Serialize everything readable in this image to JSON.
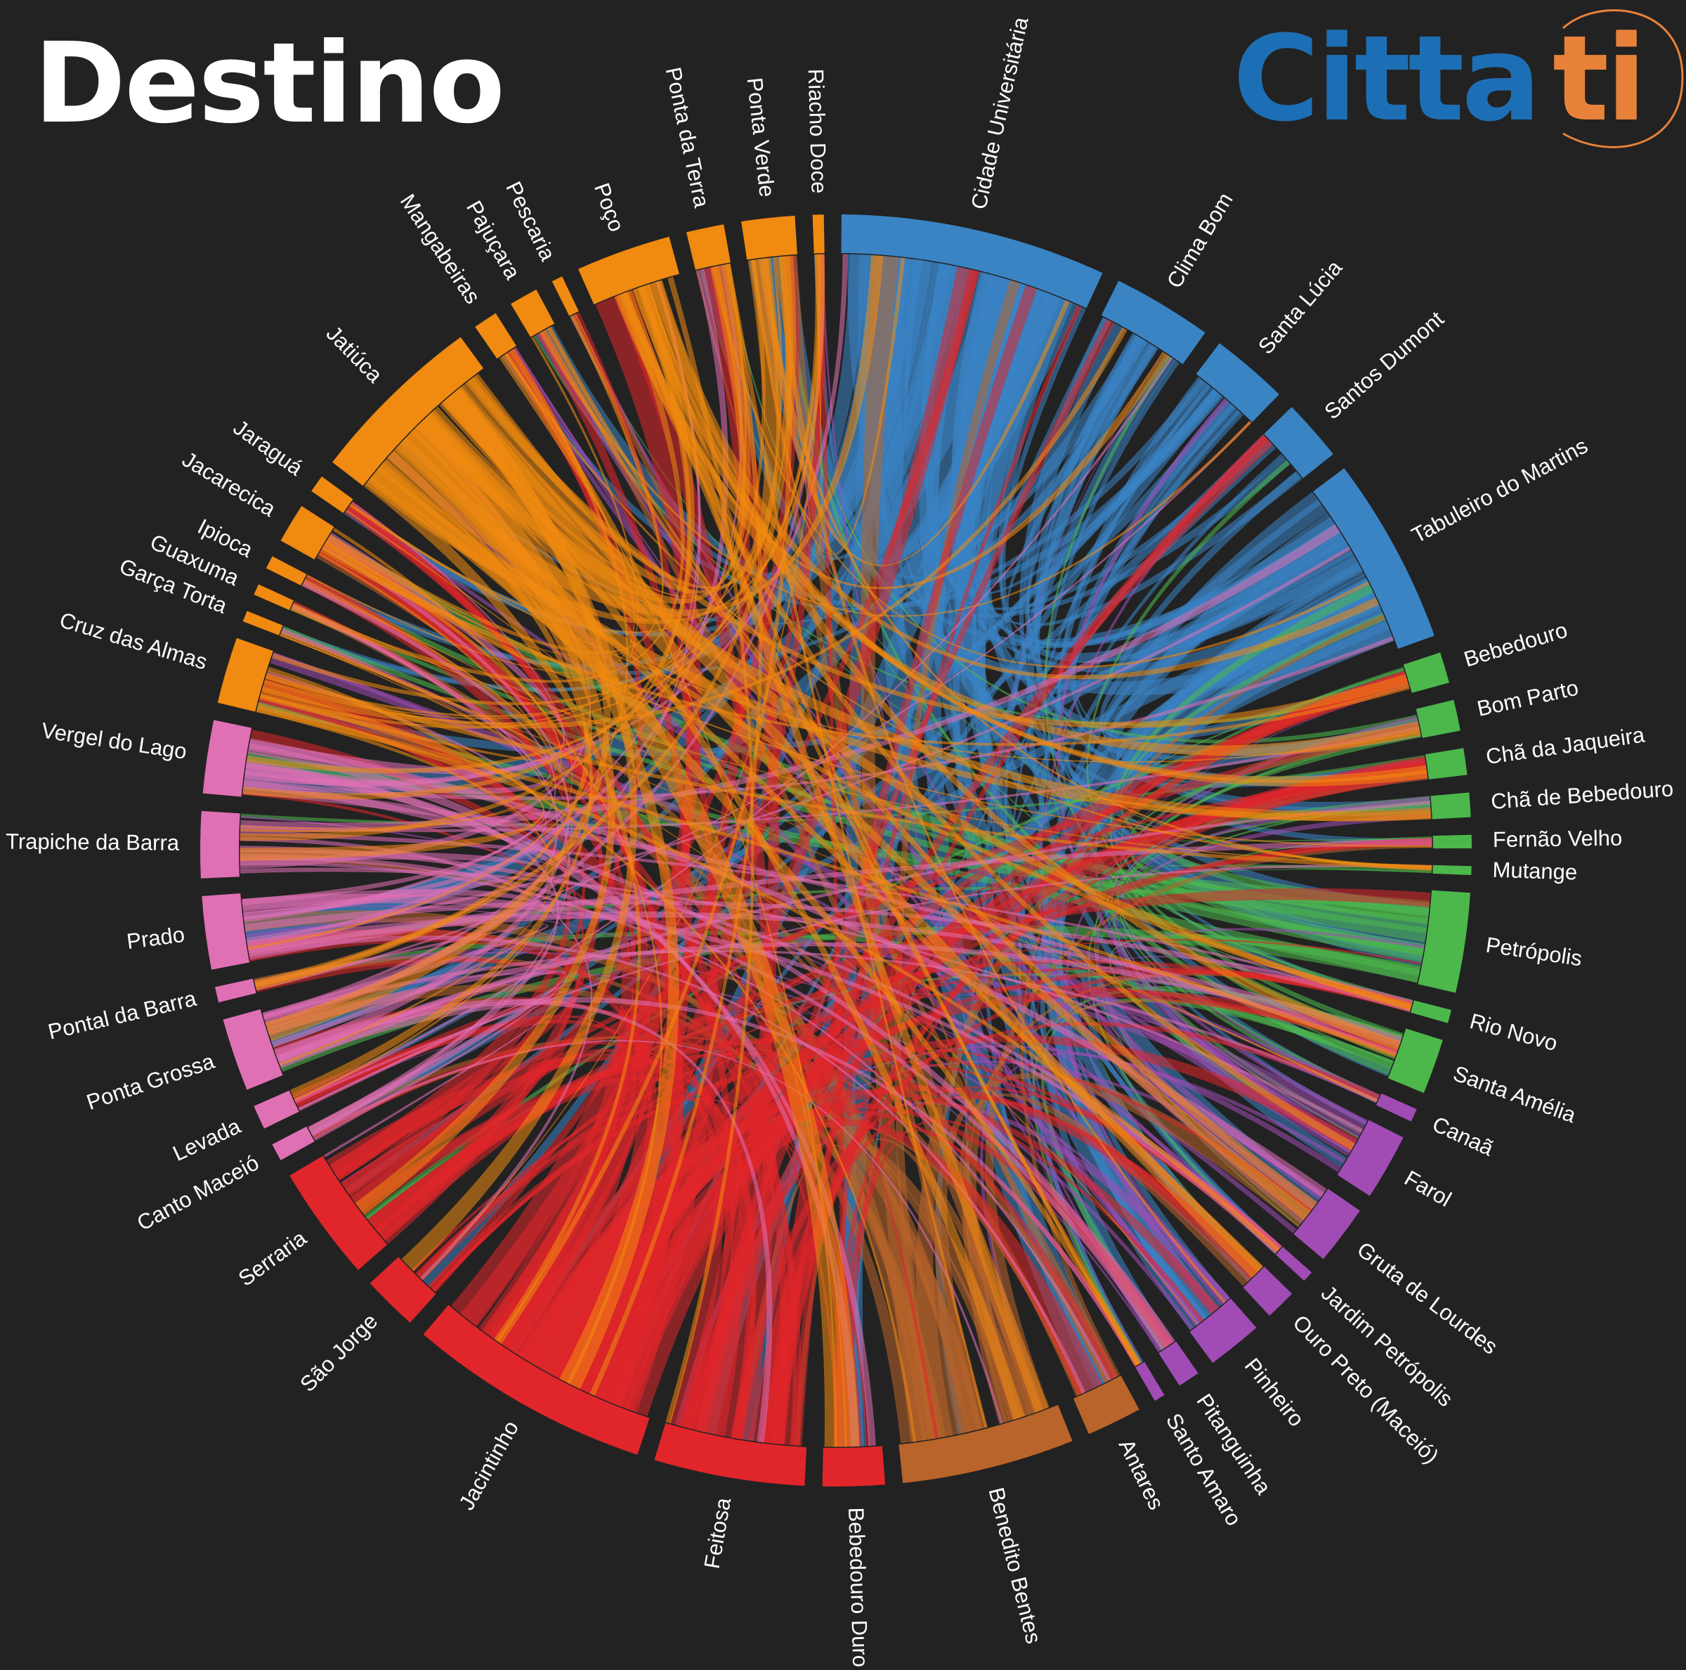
{
  "title": "Destino",
  "logo": {
    "text_main": "Citta",
    "text_accent": "ti",
    "main_color": "#1d6fb5",
    "accent_color": "#e8823a"
  },
  "chart_data": {
    "type": "chord",
    "title": "Destino",
    "group_colors": {
      "blue": "#3a84c4",
      "green": "#4cb84c",
      "purple": "#a04cb4",
      "brown": "#b8642a",
      "red": "#e0262a",
      "pink": "#e070b4",
      "orange": "#f08a10"
    },
    "groups": [
      {
        "name": "Cidade Universitária",
        "group": "blue",
        "weight": 12
      },
      {
        "name": "Clima Bom",
        "group": "blue",
        "weight": 4.5
      },
      {
        "name": "Santa Lúcia",
        "group": "blue",
        "weight": 3.5
      },
      {
        "name": "Santos Dumont",
        "group": "blue",
        "weight": 2.8
      },
      {
        "name": "Tabuleiro do Martins",
        "group": "blue",
        "weight": 8.5
      },
      {
        "name": "Bebedouro",
        "group": "green",
        "weight": 1.4
      },
      {
        "name": "Bom Parto",
        "group": "green",
        "weight": 1.4
      },
      {
        "name": "Chã da Jaqueira",
        "group": "green",
        "weight": 1.2
      },
      {
        "name": "Chã de Bebedouro",
        "group": "green",
        "weight": 1.1
      },
      {
        "name": "Fernão Velho",
        "group": "green",
        "weight": 0.6
      },
      {
        "name": "Mutange",
        "group": "green",
        "weight": 0.4
      },
      {
        "name": "Petrópolis",
        "group": "green",
        "weight": 4.5
      },
      {
        "name": "Rio Novo",
        "group": "green",
        "weight": 0.6
      },
      {
        "name": "Santa Amélia",
        "group": "green",
        "weight": 2.5
      },
      {
        "name": "Canaã",
        "group": "purple",
        "weight": 0.6
      },
      {
        "name": "Farol",
        "group": "purple",
        "weight": 3.0
      },
      {
        "name": "Gruta de Lourdes",
        "group": "purple",
        "weight": 2.7
      },
      {
        "name": "Jardim Petrópolis",
        "group": "purple",
        "weight": 0.5
      },
      {
        "name": "Ouro Preto (Maceió)",
        "group": "purple",
        "weight": 1.4
      },
      {
        "name": "Pinheiro",
        "group": "purple",
        "weight": 2.5
      },
      {
        "name": "Pitanguinha",
        "group": "purple",
        "weight": 1.0
      },
      {
        "name": "Santo Amaro",
        "group": "purple",
        "weight": 0.5
      },
      {
        "name": "Antares",
        "group": "brown",
        "weight": 2.5
      },
      {
        "name": "Benedito Bentes",
        "group": "brown",
        "weight": 7.8
      },
      {
        "name": "Bebedouro Duro",
        "group": "red",
        "weight": 2.8
      },
      {
        "name": "Feitosa",
        "group": "red",
        "weight": 6.8
      },
      {
        "name": "Jacintinho",
        "group": "red",
        "weight": 11
      },
      {
        "name": "São Jorge",
        "group": "red",
        "weight": 2.5
      },
      {
        "name": "Serraria",
        "group": "red",
        "weight": 5.2
      },
      {
        "name": "Canto Maceió",
        "group": "pink",
        "weight": 0.8
      },
      {
        "name": "Levada",
        "group": "pink",
        "weight": 1.1
      },
      {
        "name": "Ponta Grossa",
        "group": "pink",
        "weight": 3.3
      },
      {
        "name": "Pontal da Barra",
        "group": "pink",
        "weight": 0.7
      },
      {
        "name": "Prado",
        "group": "pink",
        "weight": 3.3
      },
      {
        "name": "Trapiche da Barra",
        "group": "pink",
        "weight": 3.0
      },
      {
        "name": "Vergel do Lago",
        "group": "pink",
        "weight": 3.3
      },
      {
        "name": "Cruz das Almas",
        "group": "orange",
        "weight": 3.0
      },
      {
        "name": "Garça Torta",
        "group": "orange",
        "weight": 0.5
      },
      {
        "name": "Guaxuma",
        "group": "orange",
        "weight": 0.5
      },
      {
        "name": "Ipioca",
        "group": "orange",
        "weight": 0.6
      },
      {
        "name": "Jacarecica",
        "group": "orange",
        "weight": 1.8
      },
      {
        "name": "Jaraguá",
        "group": "orange",
        "weight": 0.8
      },
      {
        "name": "Jatiúca",
        "group": "orange",
        "weight": 8.0
      },
      {
        "name": "Mangabeiras",
        "group": "orange",
        "weight": 1.1
      },
      {
        "name": "Pajuçara",
        "group": "orange",
        "weight": 1.3
      },
      {
        "name": "Pescaria",
        "group": "orange",
        "weight": 0.5
      },
      {
        "name": "Poço",
        "group": "orange",
        "weight": 4.3
      },
      {
        "name": "Ponta da Terra",
        "group": "orange",
        "weight": 1.7
      },
      {
        "name": "Ponta Verde",
        "group": "orange",
        "weight": 2.4
      },
      {
        "name": "Riacho Doce",
        "group": "orange",
        "weight": 0.5
      }
    ]
  }
}
